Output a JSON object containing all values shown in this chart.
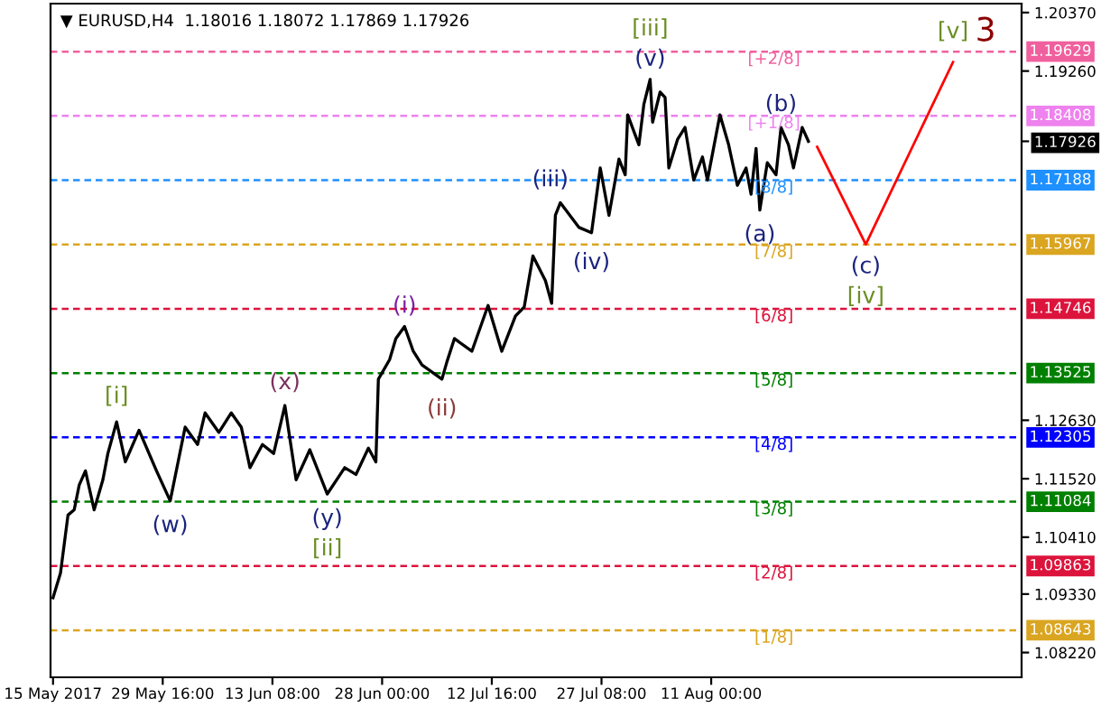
{
  "chart_data": {
    "type": "line",
    "title": "▼ EURUSD,H4  1.18016 1.18072 1.17869 1.17926",
    "xlim": [
      "2017-05-14T16:00",
      "2017-09-21T12:00"
    ],
    "ylim": [
      1.0775,
      1.2054
    ],
    "xticks": [
      {
        "value": "2017-05-15T00:00",
        "label": "15 May 2017"
      },
      {
        "value": "2017-05-29T16:00",
        "label": "29 May 16:00"
      },
      {
        "value": "2017-06-13T08:00",
        "label": "13 Jun 08:00"
      },
      {
        "value": "2017-06-28T00:00",
        "label": "28 Jun 00:00"
      },
      {
        "value": "2017-07-12T16:00",
        "label": "12 Jul 16:00"
      },
      {
        "value": "2017-07-27T08:00",
        "label": "27 Jul 08:00"
      },
      {
        "value": "2017-08-11T00:00",
        "label": "11 Aug 00:00"
      }
    ],
    "yticks": [
      {
        "value": 1.2037,
        "label": "1.20370"
      },
      {
        "value": 1.1926,
        "label": "1.19260"
      },
      {
        "value": 1.17926,
        "label": "1.17926"
      },
      {
        "value": 1.1263,
        "label": "1.12630"
      },
      {
        "value": 1.1152,
        "label": "1.11520"
      },
      {
        "value": 1.1041,
        "label": "1.10410"
      },
      {
        "value": 1.0933,
        "label": "1.09330"
      },
      {
        "value": 1.0822,
        "label": "1.08220"
      }
    ],
    "grid": false,
    "legend": false,
    "series": [
      {
        "color": "#000000",
        "x": [
          "2017-05-15T00:00",
          "2017-05-16T00:00",
          "2017-05-17T00:00",
          "2017-05-17T20:00",
          "2017-05-18T12:00",
          "2017-05-19T08:00",
          "2017-05-20T12:00",
          "2017-05-21T16:00",
          "2017-05-22T08:00",
          "2017-05-23T12:00",
          "2017-05-24T16:00",
          "2017-05-26T12:00",
          "2017-05-28T20:00",
          "2017-05-30T16:00",
          "2017-06-01T16:00",
          "2017-06-03T08:00",
          "2017-06-04T08:00",
          "2017-06-06T04:00",
          "2017-06-07T20:00",
          "2017-06-09T04:00",
          "2017-06-10T08:00",
          "2017-06-12T00:00",
          "2017-06-13T12:00",
          "2017-06-15T00:00",
          "2017-06-16T12:00",
          "2017-06-18T08:00",
          "2017-06-20T16:00",
          "2017-06-23T00:00",
          "2017-06-24T12:00",
          "2017-06-26T04:00",
          "2017-06-27T04:00",
          "2017-06-27T12:00",
          "2017-06-29T00:00",
          "2017-06-29T20:00",
          "2017-07-01T00:00",
          "2017-07-02T04:00",
          "2017-07-03T08:00",
          "2017-07-06T00:00",
          "2017-07-06T16:00",
          "2017-07-07T16:00",
          "2017-07-10T00:00",
          "2017-07-12T04:00",
          "2017-07-14T00:00",
          "2017-07-15T20:00",
          "2017-07-17T00:00",
          "2017-07-18T04:00",
          "2017-07-19T20:00",
          "2017-07-20T16:00",
          "2017-07-21T04:00",
          "2017-07-21T20:00",
          "2017-07-24T08:00",
          "2017-07-26T00:00",
          "2017-07-27T04:00",
          "2017-07-28T08:00",
          "2017-07-29T16:00",
          "2017-07-30T12:00",
          "2017-07-30T20:00",
          "2017-08-01T08:00",
          "2017-08-02T00:00",
          "2017-08-02T20:00",
          "2017-08-03T04:00",
          "2017-08-04T04:00",
          "2017-08-04T20:00",
          "2017-08-05T08:00",
          "2017-08-06T12:00",
          "2017-08-07T12:00",
          "2017-08-08T16:00",
          "2017-08-09T20:00",
          "2017-08-10T12:00",
          "2017-08-12T04:00",
          "2017-08-13T08:00",
          "2017-08-14T12:00",
          "2017-08-15T16:00",
          "2017-08-16T08:00",
          "2017-08-17T00:00",
          "2017-08-17T12:00",
          "2017-08-18T12:00",
          "2017-08-19T16:00",
          "2017-08-20T08:00",
          "2017-08-21T08:00",
          "2017-08-22T00:00",
          "2017-08-23T04:00",
          "2017-08-24T00:00"
        ],
        "values": [
          1.0926,
          1.0973,
          1.1083,
          1.1093,
          1.114,
          1.1167,
          1.1093,
          1.115,
          1.12,
          1.126,
          1.1184,
          1.1244,
          1.1167,
          1.111,
          1.125,
          1.1217,
          1.1277,
          1.124,
          1.1277,
          1.125,
          1.1173,
          1.1217,
          1.12,
          1.1291,
          1.115,
          1.1207,
          1.1123,
          1.1173,
          1.116,
          1.121,
          1.1184,
          1.1341,
          1.1378,
          1.1418,
          1.1441,
          1.1394,
          1.1368,
          1.1341,
          1.1374,
          1.1418,
          1.1394,
          1.1481,
          1.1394,
          1.1461,
          1.1478,
          1.1575,
          1.1528,
          1.1485,
          1.1652,
          1.1676,
          1.1629,
          1.1619,
          1.1742,
          1.1652,
          1.1759,
          1.1729,
          1.1843,
          1.1786,
          1.1863,
          1.191,
          1.1829,
          1.1886,
          1.1876,
          1.1742,
          1.1796,
          1.1819,
          1.1719,
          1.1763,
          1.1719,
          1.1843,
          1.1786,
          1.1709,
          1.1742,
          1.1692,
          1.1779,
          1.1662,
          1.1752,
          1.1729,
          1.1819,
          1.1786,
          1.1742,
          1.1819,
          1.17926
        ]
      },
      {
        "color": "#ff0000",
        "x": [
          "2017-08-25T04:00",
          "2017-08-31T16:00",
          "2017-09-12T08:00"
        ],
        "values": [
          1.1782,
          1.1597,
          1.1943
        ]
      }
    ],
    "ref_lines": [
      {
        "axis": "y",
        "value": 1.19629,
        "label": "1.19629",
        "color": "#f0609e",
        "line_style": "dashed"
      },
      {
        "axis": "y",
        "value": 1.18408,
        "label": "1.18408",
        "color": "#ee82ee",
        "line_style": "dashed"
      },
      {
        "axis": "y",
        "value": 1.17188,
        "label": "1.17188",
        "color": "#1e90ff",
        "line_style": "dashed"
      },
      {
        "axis": "y",
        "value": 1.15967,
        "label": "1.15967",
        "color": "#daa520",
        "line_style": "dashed"
      },
      {
        "axis": "y",
        "value": 1.14746,
        "label": "1.14746",
        "color": "#dc143c",
        "line_style": "dashed"
      },
      {
        "axis": "y",
        "value": 1.13525,
        "label": "1.13525",
        "color": "#008000",
        "line_style": "dashed"
      },
      {
        "axis": "y",
        "value": 1.12305,
        "label": "1.12305",
        "color": "#0000ff",
        "line_style": "dashed"
      },
      {
        "axis": "y",
        "value": 1.11084,
        "label": "1.11084",
        "color": "#008000",
        "line_style": "dashed"
      },
      {
        "axis": "y",
        "value": 1.09863,
        "label": "1.09863",
        "color": "#dc143c",
        "line_style": "dashed"
      },
      {
        "axis": "y",
        "value": 1.08643,
        "label": "1.08643",
        "color": "#daa520",
        "line_style": "dashed"
      }
    ],
    "annotations": [
      {
        "text": "[iii]",
        "x": "2017-08-02T20:00",
        "y": 1.191
      },
      {
        "text": "(v)",
        "x": "2017-08-02T20:00",
        "y": 1.191
      },
      {
        "text": "(b)",
        "x": "2017-08-20T08:00",
        "y": 1.1819
      },
      {
        "text": "(a)",
        "x": "2017-08-17T12:00",
        "y": 1.1662
      },
      {
        "text": "(c)",
        "x": "2017-08-31T16:00",
        "y": 1.1597
      },
      {
        "text": "[iv]",
        "x": "2017-08-31T16:00",
        "y": 1.1597
      },
      {
        "text": "[v]",
        "x": "2017-09-12T08:00",
        "y": 1.1943
      },
      {
        "text": "3",
        "x": "2017-09-12T08:00",
        "y": 1.1943
      },
      {
        "text": "(iii)",
        "x": "2017-07-21T20:00",
        "y": 1.1676
      },
      {
        "text": "(iv)",
        "x": "2017-07-26T00:00",
        "y": 1.1619
      },
      {
        "text": "(i)",
        "x": "2017-07-01T00:00",
        "y": 1.1441
      },
      {
        "text": "(ii)",
        "x": "2017-07-06T00:00",
        "y": 1.1341
      },
      {
        "text": "[i]",
        "x": "2017-05-23T12:00",
        "y": 1.126
      },
      {
        "text": "(w)",
        "x": "2017-05-30T16:00",
        "y": 1.111
      },
      {
        "text": "(x)",
        "x": "2017-06-15T00:00",
        "y": 1.1291
      },
      {
        "text": "(y)",
        "x": "2017-06-20T16:00",
        "y": 1.1123
      },
      {
        "text": "[ii]",
        "x": "2017-06-20T16:00",
        "y": 1.1123
      },
      {
        "text": "[+2/8]",
        "y": 1.19629
      },
      {
        "text": "[+1/8]",
        "y": 1.18408
      },
      {
        "text": "[8/8]",
        "y": 1.17188
      },
      {
        "text": "[7/8]",
        "y": 1.15967
      },
      {
        "text": "[6/8]",
        "y": 1.14746
      },
      {
        "text": "[5/8]",
        "y": 1.13525
      },
      {
        "text": "[4/8]",
        "y": 1.12305
      },
      {
        "text": "[3/8]",
        "y": 1.11084
      },
      {
        "text": "[2/8]",
        "y": 1.09863
      },
      {
        "text": "[1/8]",
        "y": 1.08643
      }
    ]
  }
}
